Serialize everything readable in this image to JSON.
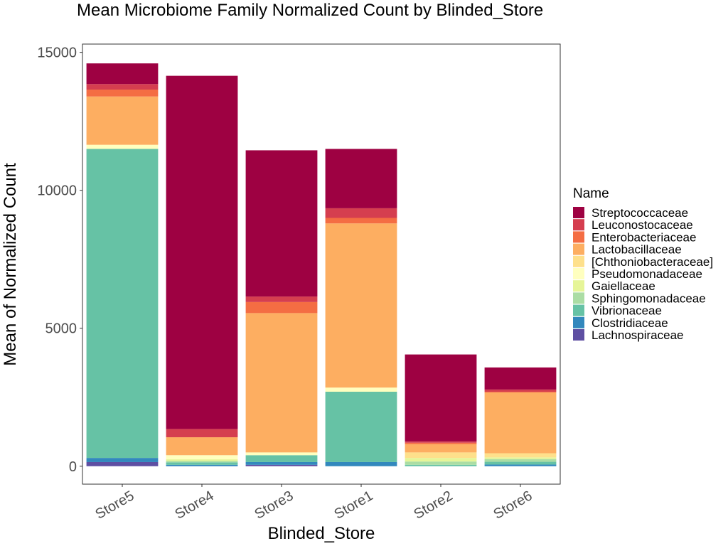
{
  "chart_data": {
    "type": "bar",
    "stacked": true,
    "title": "Mean Microbiome Family Normalized Count by Blinded_Store",
    "xlabel": "Blinded_Store",
    "ylabel": "Mean of Normalized Count",
    "ylim": [
      -650,
      15300
    ],
    "yticks": [
      0,
      5000,
      10000,
      15000
    ],
    "grid": false,
    "legend_title": "Name",
    "legend_position": "right",
    "categories": [
      "Store5",
      "Store4",
      "Store3",
      "Store1",
      "Store2",
      "Store6"
    ],
    "series": [
      {
        "name": "Streptococcaceae",
        "color": "#9e0142",
        "values": [
          750,
          12800,
          5300,
          2150,
          3150,
          800
        ]
      },
      {
        "name": "Leuconostocaceae",
        "color": "#d53e4f",
        "values": [
          200,
          300,
          200,
          350,
          50,
          80
        ]
      },
      {
        "name": "Enterobacteriaceae",
        "color": "#f46d43",
        "values": [
          250,
          0,
          400,
          200,
          50,
          30
        ]
      },
      {
        "name": "Lactobacillaceae",
        "color": "#fdae61",
        "values": [
          1750,
          650,
          5050,
          5950,
          300,
          2200
        ]
      },
      {
        "name": "[Chthoniobacteraceae]",
        "color": "#fee08b",
        "values": [
          0,
          0,
          0,
          0,
          200,
          150
        ]
      },
      {
        "name": "Pseudomonadaceae",
        "color": "#ffffbf",
        "values": [
          150,
          150,
          100,
          150,
          0,
          0
        ]
      },
      {
        "name": "Gaiellaceae",
        "color": "#e6f598",
        "values": [
          0,
          60,
          0,
          0,
          130,
          60
        ]
      },
      {
        "name": "Sphingomonadaceae",
        "color": "#abdda4",
        "values": [
          0,
          50,
          0,
          0,
          120,
          100
        ]
      },
      {
        "name": "Vibrionaceae",
        "color": "#66c2a5",
        "values": [
          11200,
          90,
          250,
          2550,
          50,
          100
        ]
      },
      {
        "name": "Clostridiaceae",
        "color": "#3288bd",
        "values": [
          150,
          50,
          100,
          150,
          0,
          60
        ]
      },
      {
        "name": "Lachnospiraceae",
        "color": "#5e4fa2",
        "values": [
          150,
          0,
          50,
          0,
          0,
          0
        ]
      }
    ]
  }
}
